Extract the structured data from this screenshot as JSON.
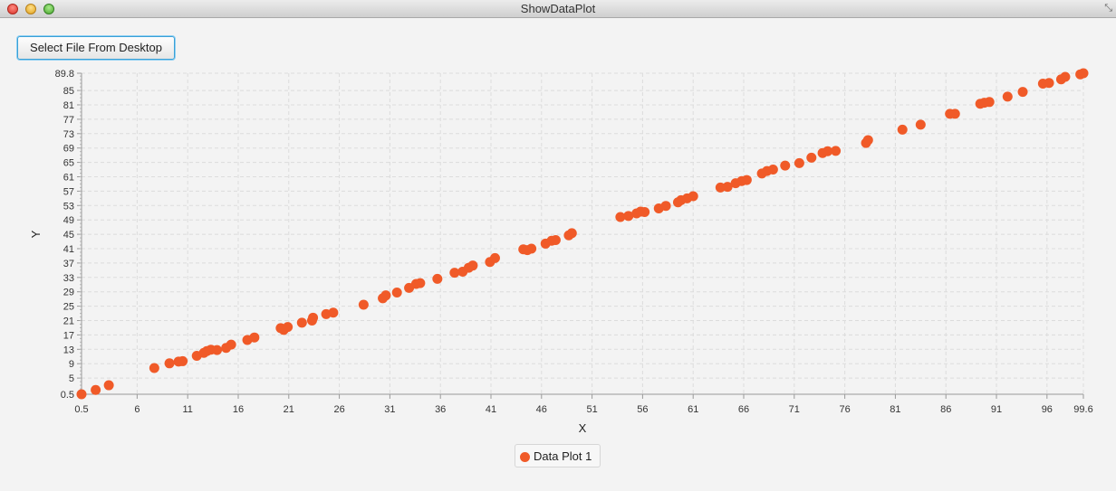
{
  "window": {
    "title": "ShowDataPlot"
  },
  "toolbar": {
    "select_file_label": "Select File From Desktop"
  },
  "colors": {
    "series": "#f05a28",
    "grid": "#dcdcdc",
    "axis": "#999999"
  },
  "chart_data": {
    "type": "scatter",
    "xlabel": "X",
    "ylabel": "Y",
    "xlim": [
      0.5,
      99.6
    ],
    "ylim": [
      0.5,
      89.8
    ],
    "xticks": [
      "0.5",
      "6",
      "11",
      "16",
      "21",
      "26",
      "31",
      "36",
      "41",
      "46",
      "51",
      "56",
      "61",
      "66",
      "71",
      "76",
      "81",
      "86",
      "91",
      "96",
      "99.6"
    ],
    "yticks": [
      "0.5",
      "5",
      "9",
      "13",
      "17",
      "21",
      "25",
      "29",
      "33",
      "37",
      "41",
      "45",
      "49",
      "53",
      "57",
      "61",
      "65",
      "69",
      "73",
      "77",
      "81",
      "85",
      "89.8"
    ],
    "grid": true,
    "legend_position": "bottom",
    "series": [
      {
        "name": "Data Plot 1",
        "points": [
          [
            0.5,
            0.5
          ],
          [
            1.9,
            1.7
          ],
          [
            3.2,
            3.0
          ],
          [
            7.7,
            7.8
          ],
          [
            9.2,
            9.1
          ],
          [
            10.1,
            9.6
          ],
          [
            10.5,
            9.7
          ],
          [
            11.9,
            11.2
          ],
          [
            12.6,
            12.0
          ],
          [
            12.9,
            12.5
          ],
          [
            13.3,
            12.9
          ],
          [
            13.9,
            12.8
          ],
          [
            14.8,
            13.4
          ],
          [
            15.3,
            14.3
          ],
          [
            16.9,
            15.6
          ],
          [
            17.6,
            16.3
          ],
          [
            20.2,
            18.9
          ],
          [
            20.5,
            18.4
          ],
          [
            20.9,
            19.2
          ],
          [
            22.3,
            20.4
          ],
          [
            23.3,
            21.0
          ],
          [
            23.4,
            21.8
          ],
          [
            24.7,
            22.8
          ],
          [
            25.4,
            23.2
          ],
          [
            28.4,
            25.4
          ],
          [
            30.3,
            27.2
          ],
          [
            30.6,
            28.0
          ],
          [
            31.7,
            28.8
          ],
          [
            32.9,
            30.1
          ],
          [
            33.6,
            31.2
          ],
          [
            34.0,
            31.4
          ],
          [
            35.7,
            32.6
          ],
          [
            37.4,
            34.3
          ],
          [
            38.2,
            34.6
          ],
          [
            38.8,
            35.7
          ],
          [
            39.2,
            36.3
          ],
          [
            40.9,
            37.3
          ],
          [
            41.4,
            38.4
          ],
          [
            44.2,
            40.8
          ],
          [
            44.6,
            40.6
          ],
          [
            45.0,
            41.0
          ],
          [
            46.4,
            42.4
          ],
          [
            47.0,
            43.2
          ],
          [
            47.4,
            43.4
          ],
          [
            48.7,
            44.7
          ],
          [
            49.0,
            45.3
          ],
          [
            53.8,
            49.8
          ],
          [
            54.6,
            50.1
          ],
          [
            55.4,
            50.8
          ],
          [
            55.8,
            51.3
          ],
          [
            56.2,
            51.2
          ],
          [
            57.6,
            52.2
          ],
          [
            58.3,
            52.9
          ],
          [
            59.5,
            53.9
          ],
          [
            59.8,
            54.5
          ],
          [
            60.4,
            55.0
          ],
          [
            61.0,
            55.6
          ],
          [
            63.7,
            58.0
          ],
          [
            64.4,
            58.2
          ],
          [
            65.2,
            59.2
          ],
          [
            65.8,
            59.8
          ],
          [
            66.3,
            60.1
          ],
          [
            67.8,
            61.9
          ],
          [
            68.3,
            62.6
          ],
          [
            68.9,
            63.0
          ],
          [
            70.1,
            64.1
          ],
          [
            71.5,
            64.8
          ],
          [
            72.7,
            66.3
          ],
          [
            73.8,
            67.6
          ],
          [
            74.3,
            68.1
          ],
          [
            75.1,
            68.2
          ],
          [
            78.1,
            70.4
          ],
          [
            78.3,
            71.2
          ],
          [
            81.7,
            74.1
          ],
          [
            83.5,
            75.5
          ],
          [
            86.4,
            78.5
          ],
          [
            86.9,
            78.5
          ],
          [
            89.4,
            81.3
          ],
          [
            89.8,
            81.6
          ],
          [
            90.3,
            81.8
          ],
          [
            92.1,
            83.3
          ],
          [
            93.6,
            84.6
          ],
          [
            95.6,
            86.9
          ],
          [
            96.2,
            87.1
          ],
          [
            97.4,
            88.1
          ],
          [
            97.8,
            88.8
          ],
          [
            99.3,
            89.5
          ],
          [
            99.6,
            89.8
          ]
        ]
      }
    ]
  },
  "legend": {
    "label": "Data Plot 1"
  }
}
